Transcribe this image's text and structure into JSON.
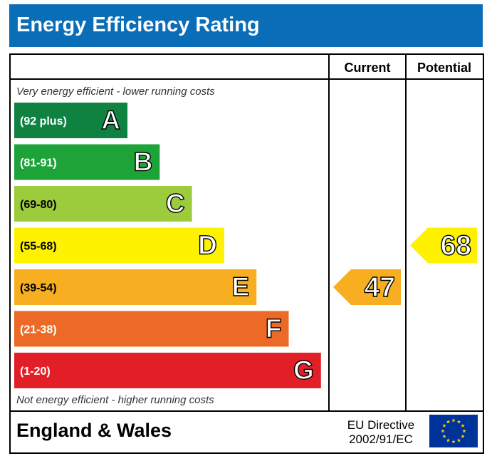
{
  "header": {
    "title": "Energy Efficiency Rating"
  },
  "columns": {
    "current": "Current",
    "potential": "Potential"
  },
  "captions": {
    "top": "Very energy efficient - lower running costs",
    "bottom": "Not energy efficient - higher running costs"
  },
  "chart_data": {
    "type": "bar",
    "title": "Energy Efficiency Rating",
    "categories": [
      "A",
      "B",
      "C",
      "D",
      "E",
      "F",
      "G"
    ],
    "bands": [
      {
        "letter": "A",
        "range": "(92 plus)",
        "color": "#0f8241"
      },
      {
        "letter": "B",
        "range": "(81-91)",
        "color": "#1ea339"
      },
      {
        "letter": "C",
        "range": "(69-80)",
        "color": "#9ccb3b"
      },
      {
        "letter": "D",
        "range": "(55-68)",
        "color": "#fff200"
      },
      {
        "letter": "E",
        "range": "(39-54)",
        "color": "#f7ae21"
      },
      {
        "letter": "F",
        "range": "(21-38)",
        "color": "#ec6a25"
      },
      {
        "letter": "G",
        "range": "(1-20)",
        "color": "#e21f26"
      }
    ],
    "current": {
      "value": 47,
      "band": "E",
      "color": "#f7ae21"
    },
    "potential": {
      "value": 68,
      "band": "D",
      "color": "#fff200"
    }
  },
  "footer": {
    "region": "England & Wales",
    "directive_line1": "EU Directive",
    "directive_line2": "2002/91/EC"
  },
  "eu_flag": {
    "icon": "eu-flag-icon",
    "background": "#003399",
    "stars": "#ffcc00"
  }
}
